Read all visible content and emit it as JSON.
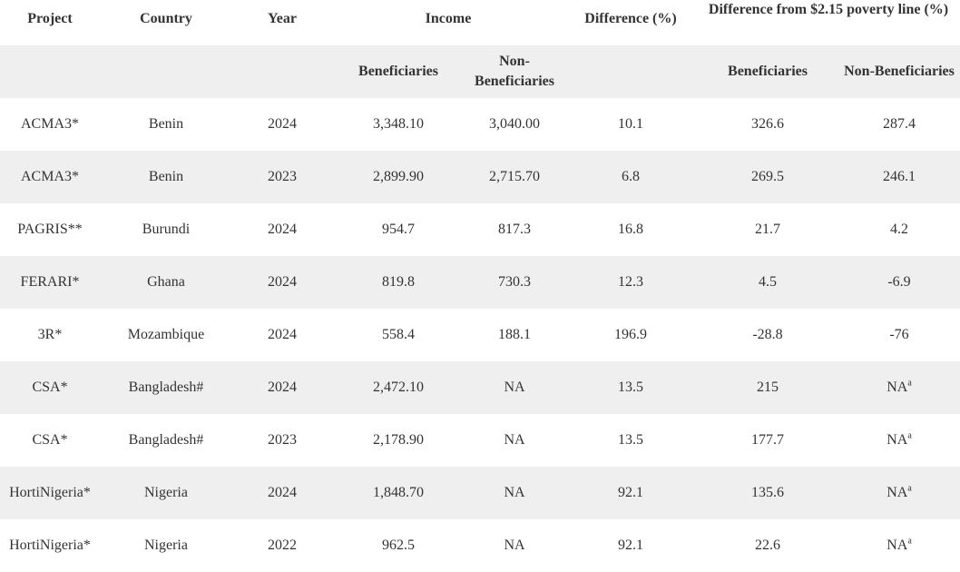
{
  "headers": {
    "project": "Project",
    "country": "Country",
    "year": "Year",
    "income": "Income",
    "difference": "Difference (%)",
    "poverty_difference": "Difference from $2.15 poverty line (%)",
    "income_beneficiaries": "Beneficiaries",
    "income_non_beneficiaries": "Non-Beneficiaries",
    "poverty_beneficiaries": "Beneficiaries",
    "poverty_non_beneficiaries": "Non-Beneficiaries"
  },
  "footnote_mark": "a",
  "rows": [
    {
      "project": "ACMA3*",
      "country": "Benin",
      "year": "2024",
      "income_ben": "3,348.10",
      "income_non": "3,040.00",
      "diff": "10.1",
      "pov_ben": "326.6",
      "pov_non": "287.4"
    },
    {
      "project": "ACMA3*",
      "country": "Benin",
      "year": "2023",
      "income_ben": "2,899.90",
      "income_non": "2,715.70",
      "diff": "6.8",
      "pov_ben": "269.5",
      "pov_non": "246.1"
    },
    {
      "project": "PAGRIS**",
      "country": "Burundi",
      "year": "2024",
      "income_ben": "954.7",
      "income_non": "817.3",
      "diff": "16.8",
      "pov_ben": "21.7",
      "pov_non": "4.2"
    },
    {
      "project": "FERARI*",
      "country": "Ghana",
      "year": "2024",
      "income_ben": "819.8",
      "income_non": "730.3",
      "diff": "12.3",
      "pov_ben": "4.5",
      "pov_non": "-6.9"
    },
    {
      "project": "3R*",
      "country": "Mozambique",
      "year": "2024",
      "income_ben": "558.4",
      "income_non": "188.1",
      "diff": "196.9",
      "pov_ben": "-28.8",
      "pov_non": "-76"
    },
    {
      "project": "CSA*",
      "country": "Bangladesh#",
      "year": "2024",
      "income_ben": "2,472.10",
      "income_non": "NA",
      "diff": "13.5",
      "pov_ben": "215",
      "pov_non": "NA",
      "pov_non_note": "a"
    },
    {
      "project": "CSA*",
      "country": "Bangladesh#",
      "year": "2023",
      "income_ben": "2,178.90",
      "income_non": "NA",
      "diff": "13.5",
      "pov_ben": "177.7",
      "pov_non": "NA",
      "pov_non_note": "a"
    },
    {
      "project": "HortiNigeria*",
      "country": "Nigeria",
      "year": "2024",
      "income_ben": "1,848.70",
      "income_non": "NA",
      "diff": "92.1",
      "pov_ben": "135.6",
      "pov_non": "NA",
      "pov_non_note": "a"
    },
    {
      "project": "HortiNigeria*",
      "country": "Nigeria",
      "year": "2022",
      "income_ben": "962.5",
      "income_non": "NA",
      "diff": "92.1",
      "pov_ben": "22.6",
      "pov_non": "NA",
      "pov_non_note": "a"
    }
  ]
}
